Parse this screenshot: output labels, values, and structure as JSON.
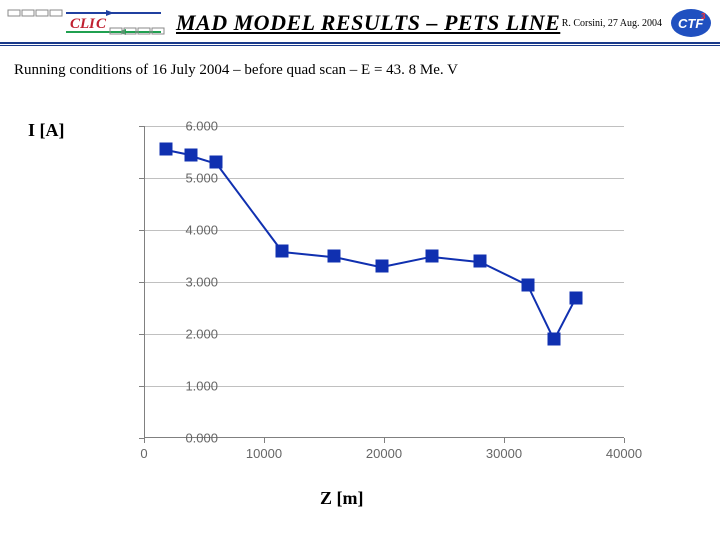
{
  "header": {
    "title": "MAD MODEL RESULTS – PETS LINE",
    "date": "R. Corsini, 27 Aug. 2004"
  },
  "subtitle": "Running conditions of 16 July 2004 – before quad scan – E = 43. 8 Me. V",
  "axes": {
    "ylabel": "I  [A]",
    "xlabel": "Z  [m]"
  },
  "chart": {
    "type": "line-scatter",
    "xlim": [
      0,
      40000
    ],
    "ylim": [
      0,
      6
    ],
    "xticks": [
      0,
      10000,
      20000,
      30000,
      40000
    ],
    "yticks": [
      0,
      1,
      2,
      3,
      4,
      5,
      6
    ],
    "ytick_labels": [
      "0.000",
      "1.000",
      "2.000",
      "3.000",
      "4.000",
      "5.000",
      "6.000"
    ],
    "xtick_labels": [
      "0",
      "10000",
      "20000",
      "30000",
      "40000"
    ],
    "grid_color": "#c0c0c0",
    "axis_color": "#808080",
    "tick_font_color": "#666666",
    "tick_fontsize": 13,
    "background_color": "#ffffff",
    "series": {
      "color": "#1030b0",
      "line_width": 2,
      "marker_style": "square",
      "marker_size": 13,
      "points": [
        {
          "x": 1800,
          "y": 5.55
        },
        {
          "x": 3900,
          "y": 5.45
        },
        {
          "x": 6000,
          "y": 5.3
        },
        {
          "x": 11500,
          "y": 3.6
        },
        {
          "x": 15800,
          "y": 3.5
        },
        {
          "x": 19800,
          "y": 3.3
        },
        {
          "x": 24000,
          "y": 3.5
        },
        {
          "x": 28000,
          "y": 3.4
        },
        {
          "x": 32000,
          "y": 2.95
        },
        {
          "x": 34200,
          "y": 1.9
        },
        {
          "x": 36000,
          "y": 2.7
        }
      ]
    }
  },
  "colors": {
    "header_rule": "#1a3a8a",
    "clic_red": "#c02030",
    "clic_blue": "#2040a0",
    "ctf_bg": "#2050c0"
  },
  "logo_left_text": "CLIC",
  "logo_right_text": "CTF"
}
